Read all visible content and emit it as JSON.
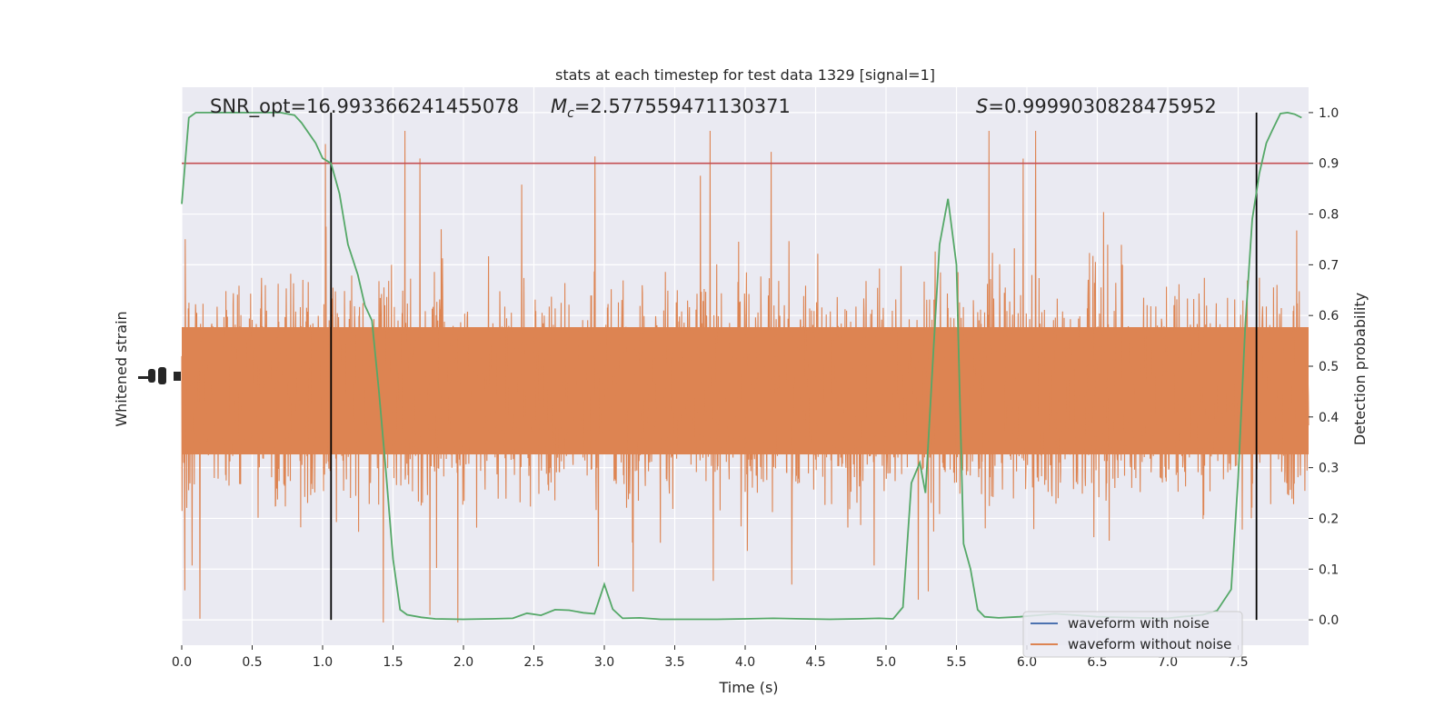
{
  "chart_data": {
    "type": "line",
    "title": "stats at each timestep for test data 1329 [signal=1]",
    "xlabel": "Time (s)",
    "ylabel_left": "Whitened strain",
    "ylabel_right": "Detection probability",
    "xlim": [
      0.0,
      8.0
    ],
    "ylim_right": [
      -0.05,
      1.05
    ],
    "x_ticks": [
      "0.0",
      "0.5",
      "1.0",
      "1.5",
      "2.0",
      "2.5",
      "3.0",
      "3.5",
      "4.0",
      "4.5",
      "5.0",
      "5.5",
      "6.0",
      "6.5",
      "7.0",
      "7.5"
    ],
    "x_tick_values": [
      0.0,
      0.5,
      1.0,
      1.5,
      2.0,
      2.5,
      3.0,
      3.5,
      4.0,
      4.5,
      5.0,
      5.5,
      6.0,
      6.5,
      7.0,
      7.5
    ],
    "y_right_ticks": [
      "0.0",
      "0.1",
      "0.2",
      "0.3",
      "0.4",
      "0.5",
      "0.6",
      "0.7",
      "0.8",
      "0.9",
      "1.0"
    ],
    "y_right_tick_values": [
      0.0,
      0.1,
      0.2,
      0.3,
      0.4,
      0.5,
      0.6,
      0.7,
      0.8,
      0.9,
      1.0
    ],
    "grid": true,
    "legend_position": "bottom-right",
    "annotations": {
      "snr": "SNR_opt=16.993366241455078",
      "mc_symbol": "M",
      "mc_subscript": "c",
      "mc_value": "=2.577559471130371",
      "s_symbol": "S",
      "s_value": "=0.9999030828475952"
    },
    "threshold": 0.9,
    "vertical_markers": [
      1.06,
      7.63
    ],
    "series": [
      {
        "name": "waveform with noise",
        "color": "#4c72b0"
      },
      {
        "name": "waveform without noise",
        "color": "#dd8452"
      },
      {
        "color": "#55a868",
        "x": [
          0.0,
          0.05,
          0.1,
          0.15,
          0.2,
          0.3,
          0.4,
          0.5,
          0.6,
          0.7,
          0.8,
          0.85,
          0.9,
          0.95,
          1.0,
          1.06,
          1.12,
          1.18,
          1.25,
          1.3,
          1.35,
          1.4,
          1.45,
          1.5,
          1.55,
          1.6,
          1.7,
          1.8,
          2.0,
          2.2,
          2.35,
          2.45,
          2.55,
          2.65,
          2.75,
          2.85,
          2.93,
          3.0,
          3.06,
          3.13,
          3.25,
          3.4,
          3.6,
          3.8,
          4.0,
          4.2,
          4.4,
          4.6,
          4.8,
          4.95,
          5.05,
          5.12,
          5.18,
          5.24,
          5.28,
          5.33,
          5.38,
          5.44,
          5.5,
          5.55,
          5.6,
          5.65,
          5.7,
          5.8,
          5.95,
          6.2,
          6.5,
          6.8,
          7.0,
          7.1,
          7.25,
          7.35,
          7.45,
          7.5,
          7.55,
          7.6,
          7.65,
          7.7,
          7.75,
          7.8,
          7.85,
          7.9,
          7.95
        ],
        "values": [
          0.82,
          0.99,
          1.0,
          1.0,
          1.0,
          1.0,
          1.0,
          1.0,
          1.0,
          1.0,
          0.995,
          0.98,
          0.96,
          0.94,
          0.91,
          0.9,
          0.84,
          0.74,
          0.68,
          0.62,
          0.59,
          0.45,
          0.29,
          0.12,
          0.02,
          0.01,
          0.005,
          0.002,
          0.001,
          0.002,
          0.003,
          0.013,
          0.009,
          0.02,
          0.019,
          0.014,
          0.012,
          0.07,
          0.021,
          0.003,
          0.004,
          0.001,
          0.001,
          0.001,
          0.002,
          0.003,
          0.002,
          0.001,
          0.002,
          0.003,
          0.002,
          0.025,
          0.27,
          0.31,
          0.25,
          0.5,
          0.74,
          0.83,
          0.7,
          0.15,
          0.1,
          0.02,
          0.006,
          0.004,
          0.006,
          0.012,
          0.006,
          0.004,
          0.003,
          0.006,
          0.01,
          0.018,
          0.06,
          0.28,
          0.58,
          0.79,
          0.88,
          0.94,
          0.97,
          0.998,
          1.0,
          0.997,
          0.99
        ]
      }
    ]
  }
}
